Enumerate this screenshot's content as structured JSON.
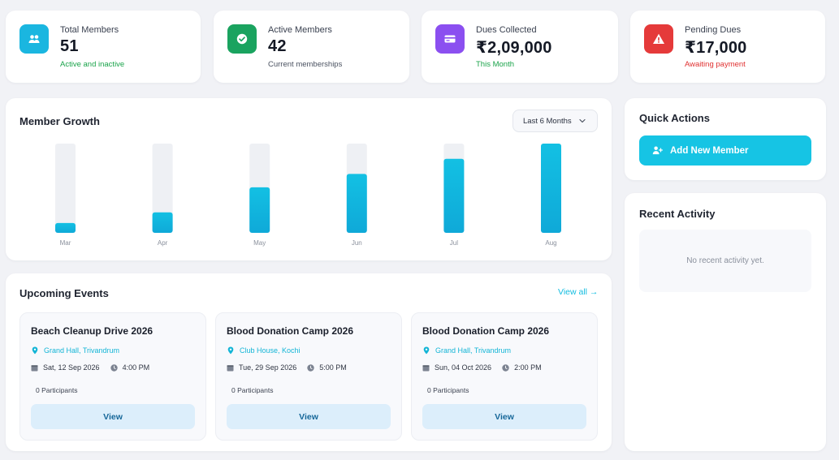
{
  "stats": [
    {
      "title": "Total Members",
      "value": "51",
      "sub": "Active and inactive",
      "icon": "users-icon",
      "icon_color": "#1ab6e0",
      "sub_color": "#1aa34a"
    },
    {
      "title": "Active Members",
      "value": "42",
      "sub": "Current memberships",
      "icon": "check-circle-icon",
      "icon_color": "#1aa35f",
      "sub_color": "#4b5261"
    },
    {
      "title": "Dues Collected",
      "value": "₹2,09,000",
      "sub": "This Month",
      "icon": "credit-card-icon",
      "icon_color": "#8b4ff0",
      "sub_color": "#1aa34a"
    },
    {
      "title": "Pending Dues",
      "value": "₹17,000",
      "sub": "Awaiting payment",
      "icon": "warning-icon",
      "icon_color": "#e53a3a",
      "sub_color": "#e03131"
    }
  ],
  "growth": {
    "title": "Member Growth",
    "range_label": "Last 6 Months"
  },
  "chart_data": {
    "type": "bar",
    "categories": [
      "Mar",
      "Apr",
      "May",
      "Jun",
      "Jul",
      "Aug"
    ],
    "values": [
      0.11,
      0.23,
      0.51,
      0.66,
      0.83,
      1.0
    ],
    "ylim": [
      0,
      1
    ],
    "bar_color": "#13c0e3",
    "track_color": "#eef0f4",
    "grid": false
  },
  "quick_actions": {
    "title": "Quick Actions",
    "add_member_label": "Add New Member"
  },
  "recent_activity": {
    "title": "Recent Activity",
    "empty_text": "No recent activity yet."
  },
  "events": {
    "title": "Upcoming Events",
    "view_all_label": "View all →",
    "items": [
      {
        "title": "Beach Cleanup Drive 2026",
        "location": "Grand Hall, Trivandrum",
        "date": "Sat, 12 Sep 2026",
        "time": "4:00 PM",
        "participants": "0 Participants",
        "view_label": "View"
      },
      {
        "title": "Blood Donation Camp 2026",
        "location": "Club House, Kochi",
        "date": "Tue, 29 Sep 2026",
        "time": "5:00 PM",
        "participants": "0 Participants",
        "view_label": "View"
      },
      {
        "title": "Blood Donation Camp 2026",
        "location": "Grand Hall, Trivandrum",
        "date": "Sun, 04 Oct 2026",
        "time": "2:00 PM",
        "participants": "0 Participants",
        "view_label": "View"
      }
    ]
  }
}
